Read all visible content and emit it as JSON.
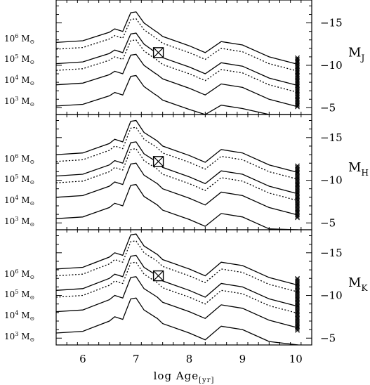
{
  "chart_data": {
    "type": "line",
    "xlabel": "log Age",
    "xlabel_sub": "[yr]",
    "xlim": [
      5.5,
      10.3
    ],
    "x_ticks": [
      6,
      7,
      8,
      9,
      10
    ],
    "x_tick_labels": [
      "6",
      "7",
      "8",
      "9",
      "10"
    ],
    "y_direction": "inverted",
    "mass_labels": [
      {
        "base": "10",
        "exp": "6",
        "unit": "M",
        "sun": "⊙"
      },
      {
        "base": "10",
        "exp": "5",
        "unit": "M",
        "sun": "⊙"
      },
      {
        "base": "10",
        "exp": "4",
        "unit": "M",
        "sun": "⊙"
      },
      {
        "base": "10",
        "exp": "3",
        "unit": "M",
        "sun": "⊙"
      }
    ],
    "panels": [
      {
        "band_main": "M",
        "band_sub": "J",
        "ylim": [
          -4.2,
          -17.7
        ],
        "y_ticks": [
          -15,
          -10,
          -5
        ],
        "y_tick_labels": [
          "−15",
          "−10",
          "−5"
        ],
        "lines": [
          {
            "mass": "1e6",
            "style": "solid",
            "x": [
              5.5,
              6.0,
              6.5,
              6.6,
              6.75,
              6.9,
              7.0,
              7.15,
              7.35,
              7.4,
              7.5,
              8.0,
              8.3,
              8.6,
              9.0,
              9.5,
              10.05
            ],
            "y": [
              -12.7,
              -12.9,
              -13.9,
              -14.3,
              -14.0,
              -16.2,
              -16.3,
              -15.0,
              -14.1,
              -13.9,
              -13.4,
              -12.3,
              -11.5,
              -12.8,
              -12.4,
              -11.0,
              -10.1
            ]
          },
          {
            "mass": "5e5",
            "style": "dotted",
            "x": [
              5.5,
              6.0,
              6.5,
              6.6,
              6.75,
              6.9,
              7.0,
              7.15,
              7.35,
              7.4,
              7.5,
              8.0,
              8.3,
              8.6,
              9.0,
              9.5,
              10.05
            ],
            "y": [
              -11.9,
              -12.1,
              -13.1,
              -13.5,
              -13.2,
              -15.4,
              -15.5,
              -14.2,
              -13.3,
              -13.1,
              -12.6,
              -11.5,
              -10.7,
              -12.0,
              -11.6,
              -10.2,
              -9.3
            ]
          },
          {
            "mass": "1e5",
            "style": "solid",
            "x": [
              5.5,
              6.0,
              6.5,
              6.6,
              6.75,
              6.9,
              7.0,
              7.15,
              7.35,
              7.4,
              7.5,
              8.0,
              8.3,
              8.6,
              9.0,
              9.5,
              10.05
            ],
            "y": [
              -10.2,
              -10.4,
              -11.4,
              -11.8,
              -11.5,
              -13.7,
              -13.8,
              -12.5,
              -11.6,
              -11.4,
              -10.9,
              -9.8,
              -9.0,
              -10.3,
              -9.9,
              -8.5,
              -7.6
            ]
          },
          {
            "mass": "5e4",
            "style": "dotted",
            "x": [
              5.5,
              6.0,
              6.5,
              6.6,
              6.75,
              6.9,
              7.0,
              7.15,
              7.35,
              7.4,
              7.5,
              8.0,
              8.3,
              8.6,
              9.0,
              9.5,
              10.05
            ],
            "y": [
              -9.4,
              -9.6,
              -10.6,
              -11.0,
              -10.7,
              -12.9,
              -13.0,
              -11.7,
              -10.8,
              -10.6,
              -10.1,
              -9.0,
              -8.2,
              -9.5,
              -9.1,
              -7.7,
              -6.8
            ]
          },
          {
            "mass": "1e4",
            "style": "solid",
            "x": [
              5.5,
              6.0,
              6.5,
              6.6,
              6.75,
              6.9,
              7.0,
              7.15,
              7.35,
              7.4,
              7.5,
              8.0,
              8.3,
              8.6,
              9.0,
              9.5,
              10.05
            ],
            "y": [
              -7.7,
              -7.9,
              -8.9,
              -9.3,
              -9.0,
              -11.2,
              -11.3,
              -10.0,
              -9.1,
              -8.9,
              -8.4,
              -7.3,
              -6.5,
              -7.8,
              -7.4,
              -6.0,
              -5.1
            ]
          },
          {
            "mass": "1e3",
            "style": "solid",
            "x": [
              5.5,
              6.0,
              6.5,
              6.6,
              6.75,
              6.9,
              7.0,
              7.15,
              7.35,
              7.4,
              7.5,
              8.0,
              8.3,
              8.6,
              9.0,
              9.5,
              10.05
            ],
            "y": [
              -5.2,
              -5.4,
              -6.4,
              -6.8,
              -6.5,
              -8.7,
              -8.8,
              -7.5,
              -6.6,
              -6.4,
              -5.9,
              -4.8,
              -4.2,
              -5.3,
              -4.9,
              -4.2,
              -4.2
            ]
          }
        ],
        "square_marker": {
          "x": 7.42,
          "y": -11.5
        },
        "cross_markers": {
          "x": 10.03,
          "y_min": -5.1,
          "y_max": -10.9,
          "count": 40
        }
      },
      {
        "band_main": "M",
        "band_sub": "H",
        "ylim": [
          -4.2,
          -17.7
        ],
        "y_ticks": [
          -15,
          -10,
          -5
        ],
        "y_tick_labels": [
          "−15",
          "−10",
          "−5"
        ],
        "lines": [
          {
            "mass": "1e6",
            "style": "solid",
            "x": [
              5.5,
              6.0,
              6.5,
              6.6,
              6.75,
              6.9,
              7.0,
              7.15,
              7.35,
              7.4,
              7.5,
              8.0,
              8.3,
              8.6,
              9.0,
              9.5,
              10.05
            ],
            "y": [
              -13.0,
              -13.2,
              -14.3,
              -14.8,
              -14.5,
              -16.9,
              -17.0,
              -15.6,
              -14.8,
              -14.6,
              -14.0,
              -12.9,
              -12.1,
              -13.6,
              -13.2,
              -11.8,
              -10.9
            ]
          },
          {
            "mass": "5e5",
            "style": "dotted",
            "x": [
              5.5,
              6.0,
              6.5,
              6.6,
              6.75,
              6.9,
              7.0,
              7.15,
              7.35,
              7.4,
              7.5,
              8.0,
              8.3,
              8.6,
              9.0,
              9.5,
              10.05
            ],
            "y": [
              -12.2,
              -12.4,
              -13.5,
              -14.0,
              -13.7,
              -16.1,
              -16.2,
              -14.8,
              -14.0,
              -13.8,
              -13.2,
              -12.1,
              -11.3,
              -12.8,
              -12.4,
              -11.0,
              -10.1
            ]
          },
          {
            "mass": "1e5",
            "style": "solid",
            "x": [
              5.5,
              6.0,
              6.5,
              6.6,
              6.75,
              6.9,
              7.0,
              7.15,
              7.35,
              7.4,
              7.5,
              8.0,
              8.3,
              8.6,
              9.0,
              9.5,
              10.05
            ],
            "y": [
              -10.5,
              -10.7,
              -11.8,
              -12.3,
              -12.0,
              -14.4,
              -14.5,
              -13.1,
              -12.3,
              -12.1,
              -11.5,
              -10.4,
              -9.6,
              -11.1,
              -10.7,
              -9.3,
              -8.4
            ]
          },
          {
            "mass": "5e4",
            "style": "dotted",
            "x": [
              5.5,
              6.0,
              6.5,
              6.6,
              6.75,
              6.9,
              7.0,
              7.15,
              7.35,
              7.4,
              7.5,
              8.0,
              8.3,
              8.6,
              9.0,
              9.5,
              10.05
            ],
            "y": [
              -9.7,
              -9.9,
              -11.0,
              -11.5,
              -11.2,
              -13.6,
              -13.7,
              -12.3,
              -11.5,
              -11.3,
              -10.7,
              -9.6,
              -8.8,
              -10.3,
              -9.9,
              -8.5,
              -7.6
            ]
          },
          {
            "mass": "1e4",
            "style": "solid",
            "x": [
              5.5,
              6.0,
              6.5,
              6.6,
              6.75,
              6.9,
              7.0,
              7.15,
              7.35,
              7.4,
              7.5,
              8.0,
              8.3,
              8.6,
              9.0,
              9.5,
              10.05
            ],
            "y": [
              -8.0,
              -8.2,
              -9.3,
              -9.8,
              -9.5,
              -11.9,
              -12.0,
              -10.6,
              -9.8,
              -9.6,
              -9.0,
              -7.9,
              -7.1,
              -8.6,
              -8.2,
              -6.8,
              -5.9
            ]
          },
          {
            "mass": "1e3",
            "style": "solid",
            "x": [
              5.5,
              6.0,
              6.5,
              6.6,
              6.75,
              6.9,
              7.0,
              7.15,
              7.35,
              7.4,
              7.5,
              8.0,
              8.3,
              8.6,
              9.0,
              9.5,
              10.05
            ],
            "y": [
              -5.5,
              -5.7,
              -6.8,
              -7.3,
              -7.0,
              -9.4,
              -9.5,
              -8.1,
              -7.3,
              -7.1,
              -6.5,
              -5.4,
              -4.6,
              -6.1,
              -5.7,
              -4.3,
              -4.2
            ]
          }
        ],
        "square_marker": {
          "x": 7.42,
          "y": -12.2
        },
        "cross_markers": {
          "x": 10.03,
          "y_min": -5.6,
          "y_max": -11.7,
          "count": 40
        }
      },
      {
        "band_main": "M",
        "band_sub": "K",
        "ylim": [
          -4.2,
          -17.7
        ],
        "y_ticks": [
          -15,
          -10,
          -5
        ],
        "y_tick_labels": [
          "−15",
          "−10",
          "−5"
        ],
        "lines": [
          {
            "mass": "1e6",
            "style": "solid",
            "x": [
              5.5,
              6.0,
              6.5,
              6.6,
              6.75,
              6.9,
              7.0,
              7.15,
              7.35,
              7.4,
              7.5,
              8.0,
              8.3,
              8.6,
              9.0,
              9.5,
              10.05
            ],
            "y": [
              -13.1,
              -13.3,
              -14.5,
              -15.0,
              -14.7,
              -17.1,
              -17.2,
              -15.8,
              -15.0,
              -14.8,
              -14.2,
              -13.1,
              -12.3,
              -13.9,
              -13.5,
              -12.1,
              -11.2
            ]
          },
          {
            "mass": "5e5",
            "style": "dotted",
            "x": [
              5.5,
              6.0,
              6.5,
              6.6,
              6.75,
              6.9,
              7.0,
              7.15,
              7.35,
              7.4,
              7.5,
              8.0,
              8.3,
              8.6,
              9.0,
              9.5,
              10.05
            ],
            "y": [
              -12.3,
              -12.5,
              -13.7,
              -14.2,
              -13.9,
              -16.3,
              -16.4,
              -15.0,
              -14.2,
              -14.0,
              -13.4,
              -12.3,
              -11.5,
              -13.1,
              -12.7,
              -11.3,
              -10.4
            ]
          },
          {
            "mass": "1e5",
            "style": "solid",
            "x": [
              5.5,
              6.0,
              6.5,
              6.6,
              6.75,
              6.9,
              7.0,
              7.15,
              7.35,
              7.4,
              7.5,
              8.0,
              8.3,
              8.6,
              9.0,
              9.5,
              10.05
            ],
            "y": [
              -10.6,
              -10.8,
              -12.0,
              -12.5,
              -12.2,
              -14.6,
              -14.7,
              -13.3,
              -12.5,
              -12.3,
              -11.7,
              -10.6,
              -9.8,
              -11.4,
              -11.0,
              -9.6,
              -8.7
            ]
          },
          {
            "mass": "5e4",
            "style": "dotted",
            "x": [
              5.5,
              6.0,
              6.5,
              6.6,
              6.75,
              6.9,
              7.0,
              7.15,
              7.35,
              7.4,
              7.5,
              8.0,
              8.3,
              8.6,
              9.0,
              9.5,
              10.05
            ],
            "y": [
              -9.8,
              -10.0,
              -11.2,
              -11.7,
              -11.4,
              -13.8,
              -13.9,
              -12.5,
              -11.7,
              -11.5,
              -10.9,
              -9.8,
              -9.0,
              -10.6,
              -10.2,
              -8.8,
              -7.9
            ]
          },
          {
            "mass": "1e4",
            "style": "solid",
            "x": [
              5.5,
              6.0,
              6.5,
              6.6,
              6.75,
              6.9,
              7.0,
              7.15,
              7.35,
              7.4,
              7.5,
              8.0,
              8.3,
              8.6,
              9.0,
              9.5,
              10.05
            ],
            "y": [
              -8.1,
              -8.3,
              -9.5,
              -10.0,
              -9.7,
              -12.1,
              -12.2,
              -10.8,
              -10.0,
              -9.8,
              -9.2,
              -8.1,
              -7.3,
              -8.9,
              -8.5,
              -7.1,
              -6.2
            ]
          },
          {
            "mass": "1e3",
            "style": "solid",
            "x": [
              5.5,
              6.0,
              6.5,
              6.6,
              6.75,
              6.9,
              7.0,
              7.15,
              7.35,
              7.4,
              7.5,
              8.0,
              8.3,
              8.6,
              9.0,
              9.5,
              10.05
            ],
            "y": [
              -5.6,
              -5.8,
              -7.0,
              -7.5,
              -7.2,
              -9.6,
              -9.7,
              -8.3,
              -7.5,
              -7.3,
              -6.7,
              -5.6,
              -4.8,
              -6.4,
              -6.0,
              -4.6,
              -4.2
            ]
          }
        ],
        "square_marker": {
          "x": 7.42,
          "y": -12.3
        },
        "cross_markers": {
          "x": 10.03,
          "y_min": -5.9,
          "y_max": -12.0,
          "count": 40
        }
      }
    ]
  }
}
